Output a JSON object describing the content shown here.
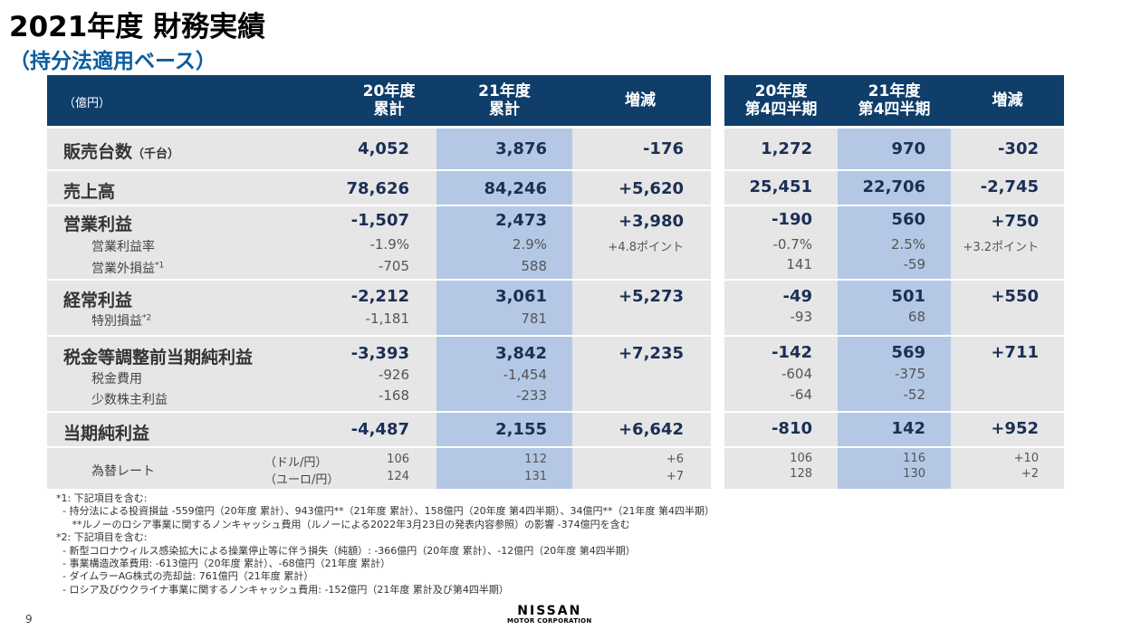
{
  "title": "2021年度 財務実績",
  "subtitle": "（持分法適用ベース）",
  "header": {
    "unit": "（億円）",
    "cols": [
      "20年度\n累計",
      "21年度\n累計",
      "増減",
      "20年度\n第4四半期",
      "21年度\n第4四半期",
      "増減"
    ]
  },
  "rows": {
    "units": {
      "label": "販売台数",
      "label_small": "（千台）",
      "v": [
        "4,052",
        "3,876",
        "-176",
        "1,272",
        "970",
        "-302"
      ]
    },
    "revenue": {
      "label": "売上高",
      "v": [
        "78,626",
        "84,246",
        "+5,620",
        "25,451",
        "22,706",
        "-2,745"
      ]
    },
    "op": {
      "label": "営業利益",
      "v": [
        "-1,507",
        "2,473",
        "+3,980",
        "-190",
        "560",
        "+750"
      ]
    },
    "op_margin": {
      "label": "営業利益率",
      "v": [
        "-1.9%",
        "2.9%",
        "+4.8ポイント",
        "-0.7%",
        "2.5%",
        "+3.2ポイント"
      ]
    },
    "non_op": {
      "label": "営業外損益",
      "note": "*1",
      "v": [
        "-705",
        "588",
        "",
        "141",
        "-59",
        ""
      ]
    },
    "ordinary": {
      "label": "経常利益",
      "v": [
        "-2,212",
        "3,061",
        "+5,273",
        "-49",
        "501",
        "+550"
      ]
    },
    "special": {
      "label": "特別損益",
      "note": "*2",
      "v": [
        "-1,181",
        "781",
        "",
        "-93",
        "68",
        ""
      ]
    },
    "pretax": {
      "label": "税金等調整前当期純利益",
      "v": [
        "-3,393",
        "3,842",
        "+7,235",
        "-142",
        "569",
        "+711"
      ]
    },
    "tax": {
      "label": "税金費用",
      "v": [
        "-926",
        "-1,454",
        "",
        "-604",
        "-375",
        ""
      ]
    },
    "minority": {
      "label": "少数株主利益",
      "v": [
        "-168",
        "-233",
        "",
        "-64",
        "-52",
        ""
      ]
    },
    "net": {
      "label": "当期純利益",
      "v": [
        "-4,487",
        "2,155",
        "+6,642",
        "-810",
        "142",
        "+952"
      ]
    },
    "fx": {
      "label": "為替レート",
      "usd_label": "（ドル/円）",
      "eur_label": "（ユーロ/円）",
      "usd": [
        "106",
        "112",
        "+6",
        "106",
        "116",
        "+10"
      ],
      "eur": [
        "124",
        "131",
        "+7",
        "128",
        "130",
        "+2"
      ]
    }
  },
  "notes": [
    "*1: 下記項目を含む:",
    "  - 持分法による投資損益 -559億円（20年度 累計）、943億円**（21年度 累計）、158億円（20年度 第4四半期）、34億円**（21年度 第4四半期）",
    "     **ルノーのロシア事業に関するノンキャッシュ費用（ルノーによる2022年3月23日の発表内容参照）の影響 -374億円を含む",
    "*2: 下記項目を含む:",
    "  - 新型コロナウィルス感染拡大による操業停止等に伴う損失（純額）: -366億円（20年度 累計）、-12億円（20年度 第4四半期）",
    "  - 事業構造改革費用: -613億円（20年度 累計）、-68億円（21年度 累計）",
    "  - ダイムラーAG株式の売却益: 761億円（21年度 累計）",
    "  - ロシア及びウクライナ事業に関するノンキャッシュ費用: -152億円（21年度 累計及び第4四半期）"
  ],
  "page_number": "9",
  "logo": {
    "name": "NISSAN",
    "tag": "MOTOR CORPORATION"
  },
  "colors": {
    "header_bg": "#0f3e6b",
    "row_bg": "#e6e6e6",
    "highlight": "#b4c8e6",
    "subtitle": "#0b5c9e",
    "value": "#1b2f55"
  }
}
